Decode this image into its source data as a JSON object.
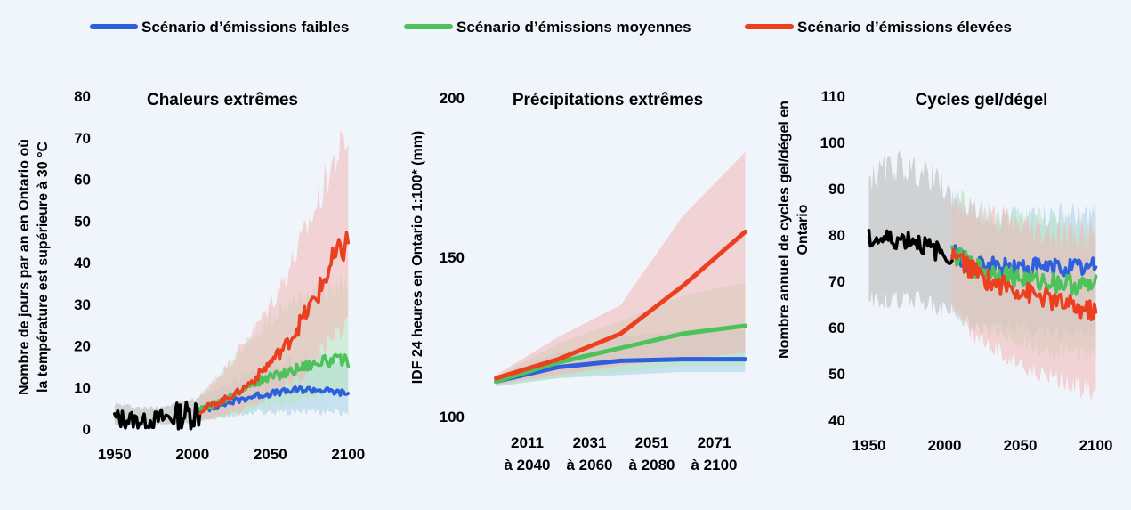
{
  "legend": {
    "low": "Scénario d’émissions faibles",
    "medium": "Scénario d’émissions moyennes",
    "high": "Scénario d’émissions élevées"
  },
  "colors": {
    "low": "#2e5fdc",
    "medium": "#4ec25a",
    "high": "#ec3f20",
    "historical": "#000000",
    "low_band": "#a8cfe8",
    "medium_band": "#b8e5bc",
    "high_band": "#f2b7b5",
    "hist_band": "#c4c4c4"
  },
  "chart_data": [
    {
      "type": "line",
      "title": "Chaleurs extrêmes",
      "ylabel": "Nombre de jours par an en Ontario où la température est supérieure à 30 °C",
      "xlabel": "",
      "xlim": [
        1945,
        2105
      ],
      "ylim": [
        0,
        80
      ],
      "xticks": [
        1950,
        2000,
        2050,
        2100
      ],
      "yticks": [
        0,
        10,
        20,
        30,
        40,
        50,
        60,
        70,
        80
      ],
      "series": [
        {
          "key": "historical",
          "x": [
            1950,
            1960,
            1970,
            1980,
            1990,
            2000,
            2005
          ],
          "y": [
            2.5,
            2.3,
            1.8,
            2.5,
            3.2,
            3.8,
            4.5
          ],
          "band_low": [
            1,
            1,
            0.8,
            1,
            1.2,
            1.5,
            2
          ],
          "band_high": [
            6,
            5.5,
            5,
            5.5,
            6,
            7,
            8
          ]
        },
        {
          "key": "low",
          "x": [
            2005,
            2020,
            2030,
            2040,
            2050,
            2060,
            2070,
            2080,
            2090,
            2100
          ],
          "y": [
            4.5,
            6,
            7,
            8,
            8.5,
            9,
            9.5,
            9.5,
            9,
            8.5
          ],
          "band_low": [
            2,
            3,
            3.5,
            4,
            4,
            4,
            4,
            4,
            4,
            4
          ],
          "band_high": [
            8,
            10,
            12,
            14,
            15,
            16,
            17,
            17,
            17,
            17
          ]
        },
        {
          "key": "medium",
          "x": [
            2005,
            2020,
            2030,
            2040,
            2050,
            2060,
            2070,
            2080,
            2090,
            2100
          ],
          "y": [
            4.5,
            7,
            9,
            11,
            12.5,
            13.5,
            15,
            16,
            16.5,
            16.5
          ],
          "band_low": [
            2,
            3,
            4,
            5,
            6,
            6,
            7,
            8,
            9,
            9
          ],
          "band_high": [
            8,
            14,
            18,
            22,
            26,
            29,
            32,
            33,
            34,
            34
          ]
        },
        {
          "key": "high",
          "x": [
            2005,
            2020,
            2030,
            2040,
            2050,
            2060,
            2070,
            2080,
            2090,
            2100
          ],
          "y": [
            4.5,
            7,
            9,
            12,
            16,
            20,
            26,
            32,
            40,
            45
          ],
          "band_low": [
            2,
            3,
            4,
            6,
            8,
            10,
            13,
            17,
            22,
            26
          ],
          "band_high": [
            8,
            14,
            19,
            24,
            30,
            37,
            45,
            54,
            64,
            70
          ]
        }
      ]
    },
    {
      "type": "line",
      "title": "Précipitations extrêmes",
      "ylabel": "IDF 24 heures en Ontario 1:100* (mm)",
      "xlabel": "",
      "categories": [
        [
          "2011",
          "à 2040"
        ],
        [
          "2031",
          "à 2060"
        ],
        [
          "2051",
          "à 2080"
        ],
        [
          "2071",
          "à 2100"
        ]
      ],
      "xlim": [
        0,
        4.5
      ],
      "ylim": [
        100,
        200
      ],
      "yticks": [
        100,
        150,
        200
      ],
      "series": [
        {
          "key": "low",
          "x": [
            0.25,
            1.25,
            2.25,
            3.25,
            4.25
          ],
          "y": [
            111,
            115.5,
            117.5,
            118,
            118
          ],
          "band_low": [
            109.5,
            112,
            113,
            114,
            114
          ],
          "band_high": [
            112.5,
            120,
            125,
            127,
            127
          ]
        },
        {
          "key": "medium",
          "x": [
            0.25,
            1.25,
            2.25,
            3.25,
            4.25
          ],
          "y": [
            111,
            117,
            121.5,
            126,
            128.5
          ],
          "band_low": [
            109.5,
            112,
            114,
            116,
            116
          ],
          "band_high": [
            112.5,
            123,
            130,
            138,
            142
          ]
        },
        {
          "key": "high",
          "x": [
            0.25,
            1.25,
            2.25,
            3.25,
            4.25
          ],
          "y": [
            112,
            118,
            126,
            141,
            158
          ],
          "band_low": [
            110,
            113,
            116,
            118,
            120
          ],
          "band_high": [
            113,
            125,
            135,
            163,
            183
          ]
        }
      ]
    },
    {
      "type": "line",
      "title": "Cycles gel/dégel",
      "ylabel": "Nombre annuel de cycles gel/dégel en Ontario",
      "xlabel": "",
      "xlim": [
        1945,
        2105
      ],
      "ylim": [
        40,
        110
      ],
      "xticks": [
        1950,
        2000,
        2050,
        2100
      ],
      "yticks": [
        40,
        50,
        60,
        70,
        80,
        90,
        100,
        110
      ],
      "series": [
        {
          "key": "historical",
          "x": [
            1950,
            1960,
            1970,
            1980,
            1990,
            2000,
            2005
          ],
          "y": [
            79,
            79,
            79,
            79,
            77,
            76,
            76
          ],
          "band_low": [
            66,
            66,
            66,
            66,
            65,
            64,
            64
          ],
          "band_high": [
            92,
            94,
            95,
            94,
            93,
            90,
            88
          ]
        },
        {
          "key": "low",
          "x": [
            2005,
            2020,
            2030,
            2040,
            2050,
            2060,
            2070,
            2080,
            2090,
            2100
          ],
          "y": [
            76,
            73,
            73,
            73,
            73,
            73,
            73,
            73,
            73,
            73
          ],
          "band_low": [
            64,
            60,
            60,
            60,
            60,
            59,
            59,
            59,
            59,
            59
          ],
          "band_high": [
            88,
            85,
            84,
            84,
            84,
            84,
            84,
            84,
            84,
            84
          ]
        },
        {
          "key": "medium",
          "x": [
            2005,
            2020,
            2030,
            2040,
            2050,
            2060,
            2070,
            2080,
            2090,
            2100
          ],
          "y": [
            76,
            73,
            72,
            71.5,
            70.5,
            70,
            70,
            69.5,
            69,
            69
          ],
          "band_low": [
            64,
            60,
            59,
            58,
            57,
            56,
            55,
            55,
            54,
            54
          ],
          "band_high": [
            88,
            85,
            84,
            84,
            83,
            83,
            82,
            82,
            82,
            82
          ]
        },
        {
          "key": "high",
          "x": [
            2005,
            2020,
            2030,
            2040,
            2050,
            2060,
            2070,
            2080,
            2090,
            2100
          ],
          "y": [
            76,
            72,
            70,
            69,
            68,
            67,
            66,
            65,
            64,
            63.5
          ],
          "band_low": [
            64,
            58,
            56,
            54,
            52,
            50,
            49,
            48,
            47,
            46
          ],
          "band_high": [
            88,
            85,
            84,
            83,
            82,
            81,
            81,
            80,
            80,
            80
          ]
        }
      ]
    }
  ]
}
